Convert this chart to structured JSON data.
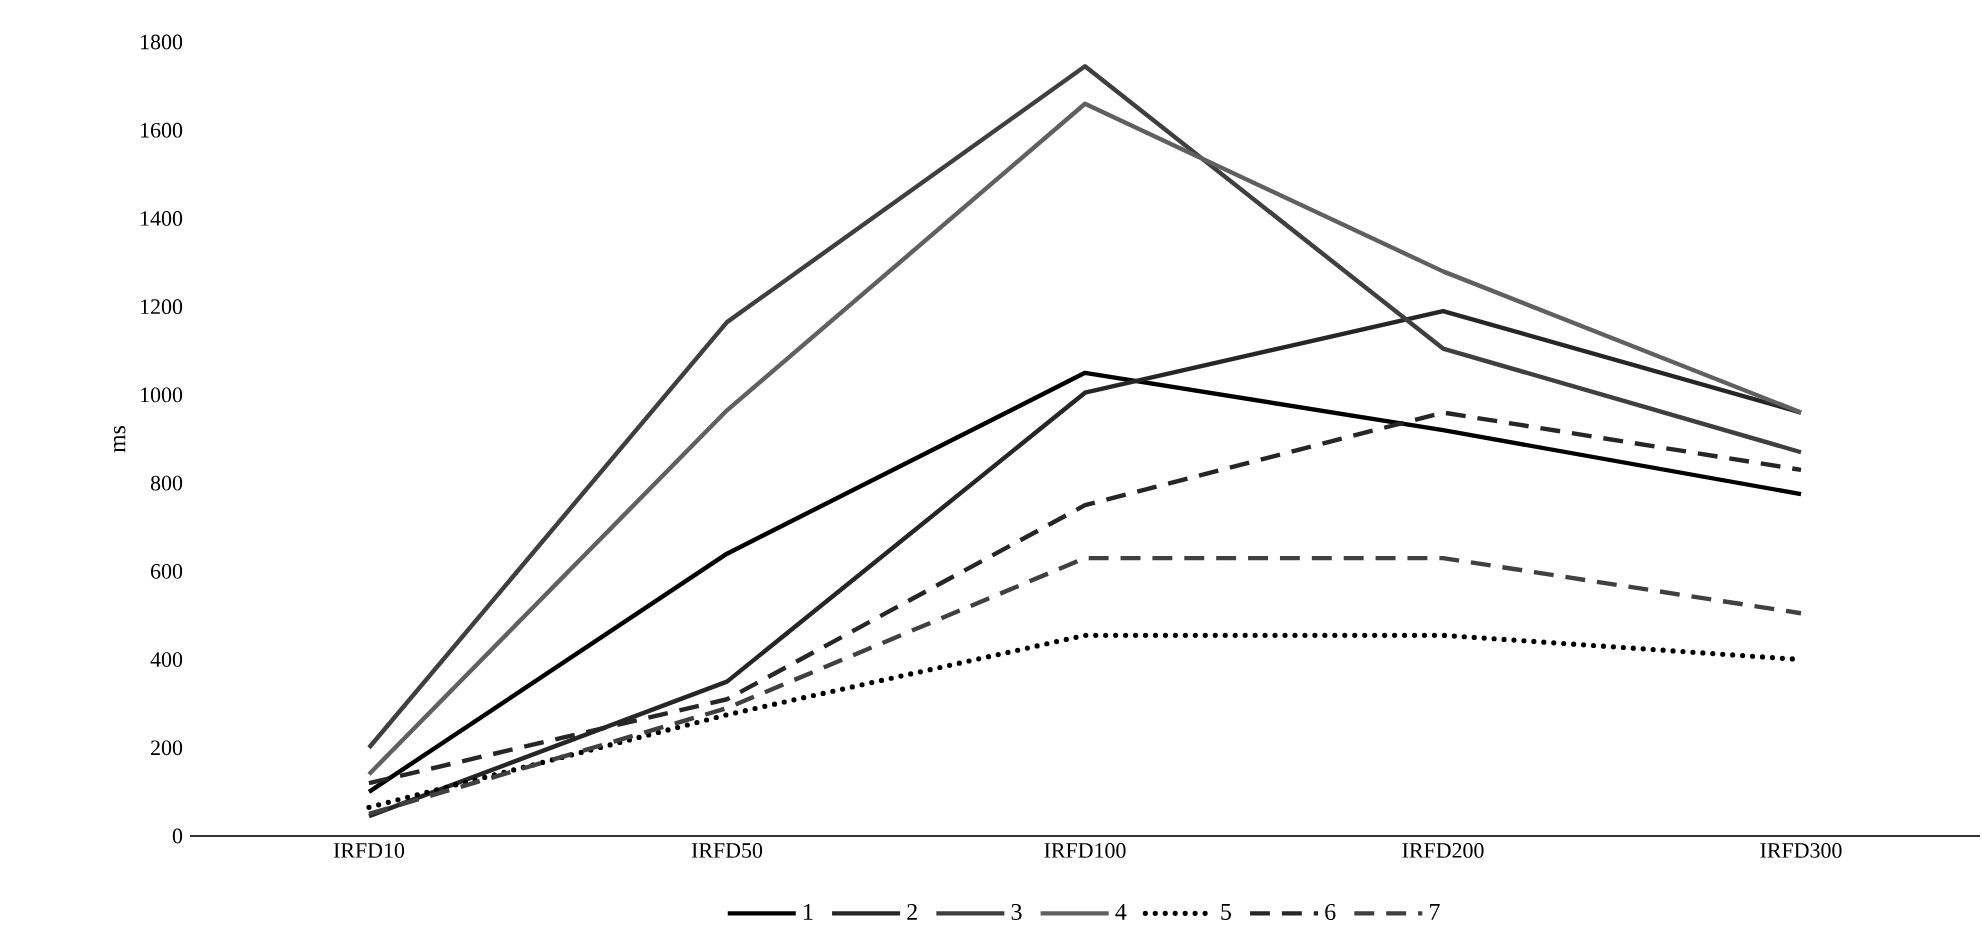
{
  "chart_data": {
    "type": "line",
    "ylabel": "ms",
    "categories": [
      "IRFD10",
      "IRFD50",
      "IRFD100",
      "IRFD200",
      "IRFD300"
    ],
    "ylim": [
      0,
      1800
    ],
    "yticks": [
      0,
      200,
      400,
      600,
      800,
      1000,
      1200,
      1400,
      1600,
      1800
    ],
    "legend": "bottom",
    "grid": false,
    "series": [
      {
        "name": "1",
        "color": "#000000",
        "line_style": "solid",
        "values": [
          100,
          640,
          1050,
          920,
          775
        ]
      },
      {
        "name": "2",
        "color": "#262626",
        "line_style": "solid",
        "values": [
          45,
          350,
          1005,
          1190,
          960
        ]
      },
      {
        "name": "3",
        "color": "#3f3f3f",
        "line_style": "solid",
        "values": [
          200,
          1165,
          1745,
          1105,
          870
        ]
      },
      {
        "name": "4",
        "color": "#606060",
        "line_style": "solid",
        "values": [
          140,
          965,
          1660,
          1280,
          960
        ]
      },
      {
        "name": "5",
        "color": "#000000",
        "line_style": "dotted",
        "values": [
          65,
          275,
          455,
          455,
          400
        ]
      },
      {
        "name": "6",
        "color": "#262626",
        "line_style": "dashed",
        "values": [
          120,
          310,
          750,
          960,
          830
        ]
      },
      {
        "name": "7",
        "color": "#404040",
        "line_style": "dashed",
        "values": [
          50,
          290,
          630,
          630,
          505
        ]
      }
    ]
  }
}
